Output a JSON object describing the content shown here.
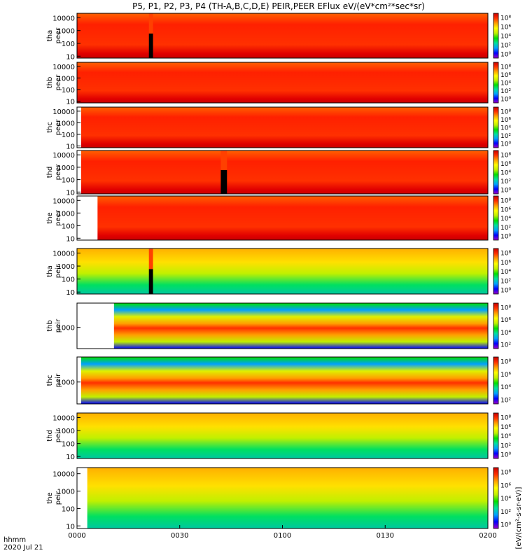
{
  "chart_data": {
    "type": "heatmap",
    "title": "P5, P1, P2, P3, P4 (TH-A,B,C,D,E) PEIR,PEER EFlux eV/(eV*cm²*sec*sr)",
    "date": "2020 Jul 21",
    "time_label": "hhmm",
    "x_ticks": [
      "0000",
      "0030",
      "0100",
      "0130",
      "0200"
    ],
    "x_range_hours": [
      0,
      2
    ],
    "y_scale": "log",
    "colorbar_label": "[eV/(cm²-s-sr-eV)]",
    "colormap": [
      "#ffffff",
      "#a000c8",
      "#0000ff",
      "#00a0ff",
      "#00e0a0",
      "#00e000",
      "#c0f000",
      "#ffff00",
      "#ffa000",
      "#ff3000",
      "#c80000"
    ],
    "panels": [
      {
        "probe": "tha",
        "species": "peer",
        "yticks": [
          "10000",
          "1000",
          "100",
          "10"
        ],
        "cbar": [
          "10⁸",
          "10⁶",
          "10⁴",
          "10²",
          "10⁰"
        ],
        "data_start_hours": 0.0,
        "gap_hours": [
          0.35,
          0.37
        ]
      },
      {
        "probe": "thb",
        "species": "peer",
        "yticks": [
          "10000",
          "1000",
          "100",
          "10"
        ],
        "cbar": [
          "10⁸",
          "10⁶",
          "10⁴",
          "10²",
          "10⁰"
        ],
        "data_start_hours": 0.0,
        "gap_hours": null
      },
      {
        "probe": "thc",
        "species": "peer",
        "yticks": [
          "10000",
          "1000",
          "100",
          "10"
        ],
        "cbar": [
          "10⁸",
          "10⁶",
          "10⁴",
          "10²",
          "10⁰"
        ],
        "data_start_hours": 0.02,
        "gap_hours": null
      },
      {
        "probe": "thd",
        "species": "peer",
        "yticks": [
          "10000",
          "1000",
          "100",
          "10"
        ],
        "cbar": [
          "10⁸",
          "10⁶",
          "10⁴",
          "10²",
          "10⁰"
        ],
        "data_start_hours": 0.02,
        "gap_hours": [
          0.7,
          0.73
        ]
      },
      {
        "probe": "the",
        "species": "peer",
        "yticks": [
          "10000",
          "1000",
          "100",
          "10"
        ],
        "cbar": [
          "10⁸",
          "10⁶",
          "10⁴",
          "10²",
          "10⁰"
        ],
        "data_start_hours": 0.1,
        "gap_hours": null
      },
      {
        "probe": "tha",
        "species": "peir",
        "yticks": [
          "10000",
          "1000",
          "100",
          "10"
        ],
        "cbar": [
          "10⁸",
          "10⁶",
          "10⁴",
          "10²",
          "10⁰"
        ],
        "data_start_hours": 0.0,
        "gap_hours": [
          0.35,
          0.37
        ]
      },
      {
        "probe": "thb",
        "species": "peir",
        "yticks": [
          "1000"
        ],
        "cbar": [
          "10⁸",
          "10⁶",
          "10⁴",
          "10²"
        ],
        "data_start_hours": 0.18,
        "gap_hours": null
      },
      {
        "probe": "thc",
        "species": "peir",
        "yticks": [
          "1000"
        ],
        "cbar": [
          "10⁸",
          "10⁶",
          "10⁴",
          "10²"
        ],
        "data_start_hours": 0.02,
        "gap_hours": null
      },
      {
        "probe": "thd",
        "species": "peir",
        "yticks": [
          "10000",
          "1000",
          "100",
          "10"
        ],
        "cbar": [
          "10⁸",
          "10⁶",
          "10⁴",
          "10²",
          "10⁰"
        ],
        "data_start_hours": 0.0,
        "gap_hours": null
      },
      {
        "probe": "the",
        "species": "peir",
        "yticks": [
          "10000",
          "1000",
          "100",
          "10"
        ],
        "cbar": [
          "10⁸",
          "10⁶",
          "10⁴",
          "10²",
          "10⁰"
        ],
        "data_start_hours": 0.05,
        "gap_hours": null
      }
    ]
  }
}
